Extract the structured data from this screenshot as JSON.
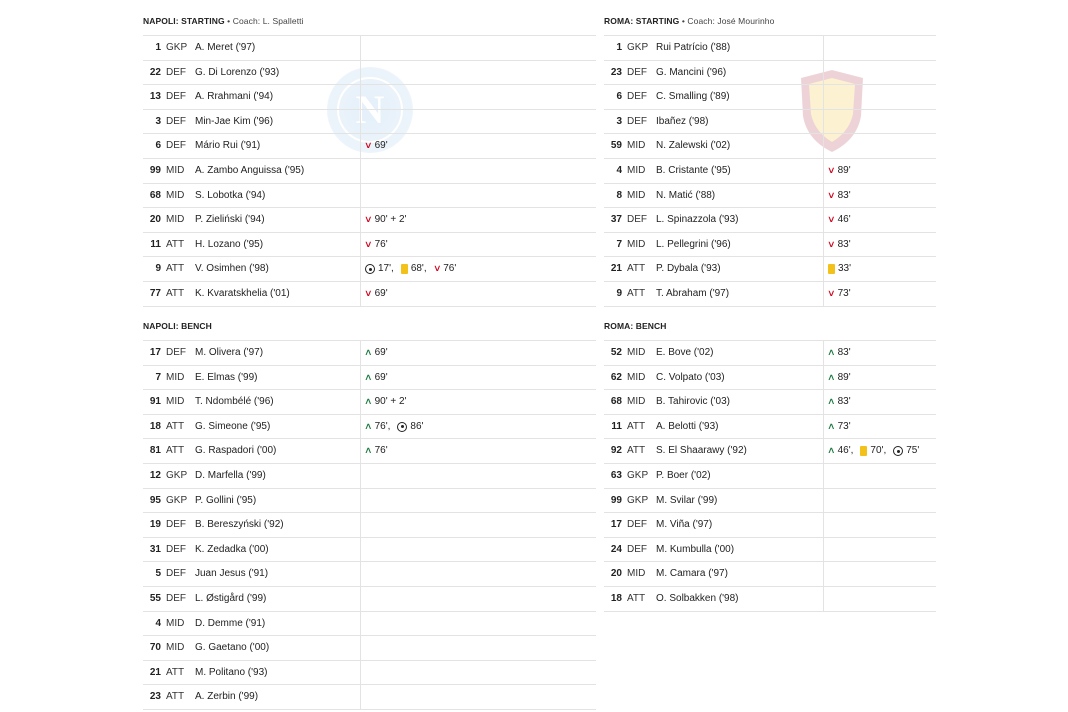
{
  "napoli": {
    "starting_title": "NAPOLI: STARTING",
    "coach": " • Coach: L. Spalletti",
    "bench_title": "NAPOLI: BENCH",
    "starting": [
      {
        "num": "1",
        "pos": "GKP",
        "name": "A. Meret ('97)",
        "events": []
      },
      {
        "num": "22",
        "pos": "DEF",
        "name": "G. Di Lorenzo ('93)",
        "events": []
      },
      {
        "num": "13",
        "pos": "DEF",
        "name": "A. Rrahmani ('94)",
        "events": []
      },
      {
        "num": "3",
        "pos": "DEF",
        "name": "Min-Jae Kim ('96)",
        "events": []
      },
      {
        "num": "6",
        "pos": "DEF",
        "name": "Mário Rui ('91)",
        "events": [
          {
            "type": "sub-out",
            "text": "69'"
          }
        ]
      },
      {
        "num": "99",
        "pos": "MID",
        "name": "A. Zambo Anguissa ('95)",
        "events": []
      },
      {
        "num": "68",
        "pos": "MID",
        "name": "S. Lobotka ('94)",
        "events": []
      },
      {
        "num": "20",
        "pos": "MID",
        "name": "P. Zieliński ('94)",
        "events": [
          {
            "type": "sub-out",
            "text": "90' + 2'"
          }
        ]
      },
      {
        "num": "11",
        "pos": "ATT",
        "name": "H. Lozano ('95)",
        "events": [
          {
            "type": "sub-out",
            "text": "76'"
          }
        ]
      },
      {
        "num": "9",
        "pos": "ATT",
        "name": "V. Osimhen ('98)",
        "events": [
          {
            "type": "goal",
            "text": "17',"
          },
          {
            "type": "yellow",
            "text": "68',"
          },
          {
            "type": "sub-out",
            "text": "76'"
          }
        ]
      },
      {
        "num": "77",
        "pos": "ATT",
        "name": "K. Kvaratskhelia ('01)",
        "events": [
          {
            "type": "sub-out",
            "text": "69'"
          }
        ]
      }
    ],
    "bench": [
      {
        "num": "17",
        "pos": "DEF",
        "name": "M. Olivera ('97)",
        "events": [
          {
            "type": "sub-in",
            "text": "69'"
          }
        ]
      },
      {
        "num": "7",
        "pos": "MID",
        "name": "E. Elmas ('99)",
        "events": [
          {
            "type": "sub-in",
            "text": "69'"
          }
        ]
      },
      {
        "num": "91",
        "pos": "MID",
        "name": "T. Ndombélé ('96)",
        "events": [
          {
            "type": "sub-in",
            "text": "90' + 2'"
          }
        ]
      },
      {
        "num": "18",
        "pos": "ATT",
        "name": "G. Simeone ('95)",
        "events": [
          {
            "type": "sub-in",
            "text": "76',"
          },
          {
            "type": "goal",
            "text": "86'"
          }
        ]
      },
      {
        "num": "81",
        "pos": "ATT",
        "name": "G. Raspadori ('00)",
        "events": [
          {
            "type": "sub-in",
            "text": "76'"
          }
        ]
      },
      {
        "num": "12",
        "pos": "GKP",
        "name": "D. Marfella ('99)",
        "events": []
      },
      {
        "num": "95",
        "pos": "GKP",
        "name": "P. Gollini ('95)",
        "events": []
      },
      {
        "num": "19",
        "pos": "DEF",
        "name": "B. Bereszyński ('92)",
        "events": []
      },
      {
        "num": "31",
        "pos": "DEF",
        "name": "K. Zedadka ('00)",
        "events": []
      },
      {
        "num": "5",
        "pos": "DEF",
        "name": "Juan Jesus ('91)",
        "events": []
      },
      {
        "num": "55",
        "pos": "DEF",
        "name": "L. Østigård ('99)",
        "events": []
      },
      {
        "num": "4",
        "pos": "MID",
        "name": "D. Demme ('91)",
        "events": []
      },
      {
        "num": "70",
        "pos": "MID",
        "name": "G. Gaetano ('00)",
        "events": []
      },
      {
        "num": "21",
        "pos": "ATT",
        "name": "M. Politano ('93)",
        "events": []
      },
      {
        "num": "23",
        "pos": "ATT",
        "name": "A. Zerbin ('99)",
        "events": []
      }
    ]
  },
  "roma": {
    "starting_title": "ROMA: STARTING",
    "coach": " • Coach: José Mourinho",
    "bench_title": "ROMA: BENCH",
    "starting": [
      {
        "num": "1",
        "pos": "GKP",
        "name": "Rui Patrício ('88)",
        "events": []
      },
      {
        "num": "23",
        "pos": "DEF",
        "name": "G. Mancini ('96)",
        "events": []
      },
      {
        "num": "6",
        "pos": "DEF",
        "name": "C. Smalling ('89)",
        "events": []
      },
      {
        "num": "3",
        "pos": "DEF",
        "name": "Ibañez ('98)",
        "events": []
      },
      {
        "num": "59",
        "pos": "MID",
        "name": "N. Zalewski ('02)",
        "events": []
      },
      {
        "num": "4",
        "pos": "MID",
        "name": "B. Cristante ('95)",
        "events": [
          {
            "type": "sub-out",
            "text": "89'"
          }
        ]
      },
      {
        "num": "8",
        "pos": "MID",
        "name": "N. Matić ('88)",
        "events": [
          {
            "type": "sub-out",
            "text": "83'"
          }
        ]
      },
      {
        "num": "37",
        "pos": "DEF",
        "name": "L. Spinazzola ('93)",
        "events": [
          {
            "type": "sub-out",
            "text": "46'"
          }
        ]
      },
      {
        "num": "7",
        "pos": "MID",
        "name": "L. Pellegrini ('96)",
        "events": [
          {
            "type": "sub-out",
            "text": "83'"
          }
        ]
      },
      {
        "num": "21",
        "pos": "ATT",
        "name": "P. Dybala ('93)",
        "events": [
          {
            "type": "yellow",
            "text": "33'"
          }
        ]
      },
      {
        "num": "9",
        "pos": "ATT",
        "name": "T. Abraham ('97)",
        "events": [
          {
            "type": "sub-out",
            "text": "73'"
          }
        ]
      }
    ],
    "bench": [
      {
        "num": "52",
        "pos": "MID",
        "name": "E. Bove ('02)",
        "events": [
          {
            "type": "sub-in",
            "text": "83'"
          }
        ]
      },
      {
        "num": "62",
        "pos": "MID",
        "name": "C. Volpato ('03)",
        "events": [
          {
            "type": "sub-in",
            "text": "89'"
          }
        ]
      },
      {
        "num": "68",
        "pos": "MID",
        "name": "B. Tahirovic ('03)",
        "events": [
          {
            "type": "sub-in",
            "text": "83'"
          }
        ]
      },
      {
        "num": "11",
        "pos": "ATT",
        "name": "A. Belotti ('93)",
        "events": [
          {
            "type": "sub-in",
            "text": "73'"
          }
        ]
      },
      {
        "num": "92",
        "pos": "ATT",
        "name": "S. El Shaarawy ('92)",
        "events": [
          {
            "type": "sub-in",
            "text": "46',"
          },
          {
            "type": "yellow",
            "text": "70',"
          },
          {
            "type": "goal",
            "text": "75'"
          }
        ]
      },
      {
        "num": "63",
        "pos": "GKP",
        "name": "P. Boer ('02)",
        "events": []
      },
      {
        "num": "99",
        "pos": "GKP",
        "name": "M. Svilar ('99)",
        "events": []
      },
      {
        "num": "17",
        "pos": "DEF",
        "name": "M. Viña ('97)",
        "events": []
      },
      {
        "num": "24",
        "pos": "DEF",
        "name": "M. Kumbulla ('00)",
        "events": []
      },
      {
        "num": "20",
        "pos": "MID",
        "name": "M. Camara ('97)",
        "events": []
      },
      {
        "num": "18",
        "pos": "ATT",
        "name": "O. Solbakken ('98)",
        "events": []
      }
    ]
  },
  "icons": {
    "sub-out": "chevron-down-icon",
    "sub-in": "chevron-up-icon",
    "goal": "football-icon",
    "yellow": "yellow-card-icon"
  },
  "colors": {
    "sub_out": "#d0021b",
    "sub_in": "#1a7a3c",
    "yellow_card": "#f2c21b"
  }
}
